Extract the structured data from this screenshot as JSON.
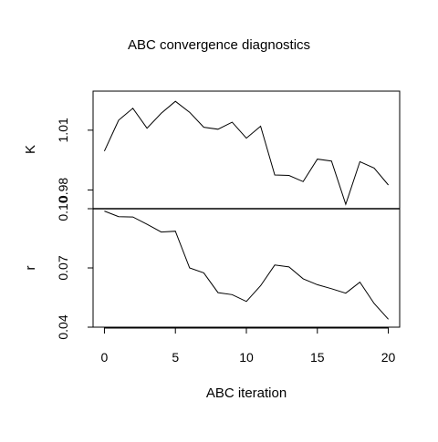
{
  "chart_data": {
    "type": "line",
    "title": "ABC convergence diagnostics",
    "xlabel": "ABC iteration",
    "x": [
      0,
      1,
      2,
      3,
      4,
      5,
      6,
      7,
      8,
      9,
      10,
      11,
      12,
      13,
      14,
      15,
      16,
      17,
      18,
      19,
      20
    ],
    "x_ticks": [
      "0",
      "5",
      "10",
      "15",
      "20"
    ],
    "x_tick_values": [
      0,
      5,
      10,
      15,
      20
    ],
    "xlim": [
      -0.8,
      20.8
    ],
    "panels": [
      {
        "ylabel": "K",
        "ylim": [
          0.9706,
          1.0296
        ],
        "y_ticks": [
          "0.98",
          "1.01"
        ],
        "y_tick_values": [
          0.98,
          1.01
        ],
        "series": [
          {
            "values": [
              0.9995,
              1.015,
              1.021,
              1.011,
              1.0185,
              1.0245,
              1.019,
              1.0115,
              1.0105,
              1.014,
              1.006,
              1.012,
              0.9875,
              0.9873,
              0.9842,
              0.9955,
              0.9945,
              0.9728,
              0.9942,
              0.991,
              0.9825
            ]
          }
        ]
      },
      {
        "ylabel": "r",
        "ylim": [
          0.04,
          0.1
        ],
        "y_ticks": [
          "0.04",
          "0.07",
          "0.10"
        ],
        "y_tick_values": [
          0.04,
          0.07,
          0.1
        ],
        "series": [
          {
            "values": [
              0.0988,
              0.096,
              0.0958,
              0.0921,
              0.0882,
              0.0886,
              0.07,
              0.0675,
              0.0575,
              0.0565,
              0.053,
              0.061,
              0.0715,
              0.0705,
              0.0645,
              0.0615,
              0.0595,
              0.0572,
              0.0628,
              0.052,
              0.044
            ]
          }
        ]
      }
    ]
  }
}
